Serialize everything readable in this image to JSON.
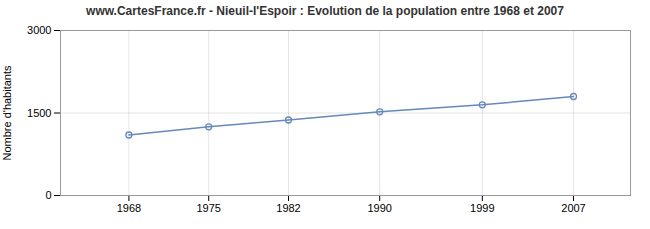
{
  "chart_data": {
    "type": "line",
    "title": "www.CartesFrance.fr - Nieuil-l'Espoir : Evolution de la population entre 1968 et 2007",
    "ylabel": "Nombre d'habitants",
    "x": [
      1968,
      1975,
      1982,
      1990,
      1999,
      2007
    ],
    "values": [
      1100,
      1248,
      1373,
      1521,
      1648,
      1800
    ],
    "color": "#6688bb",
    "marker": "circle",
    "xlim": [
      1962,
      2012
    ],
    "xticks": [
      1968,
      1975,
      1982,
      1990,
      1999,
      2007
    ],
    "ylim": [
      0,
      3000
    ],
    "yticks": [
      0,
      1500,
      3000
    ],
    "grid": true
  }
}
